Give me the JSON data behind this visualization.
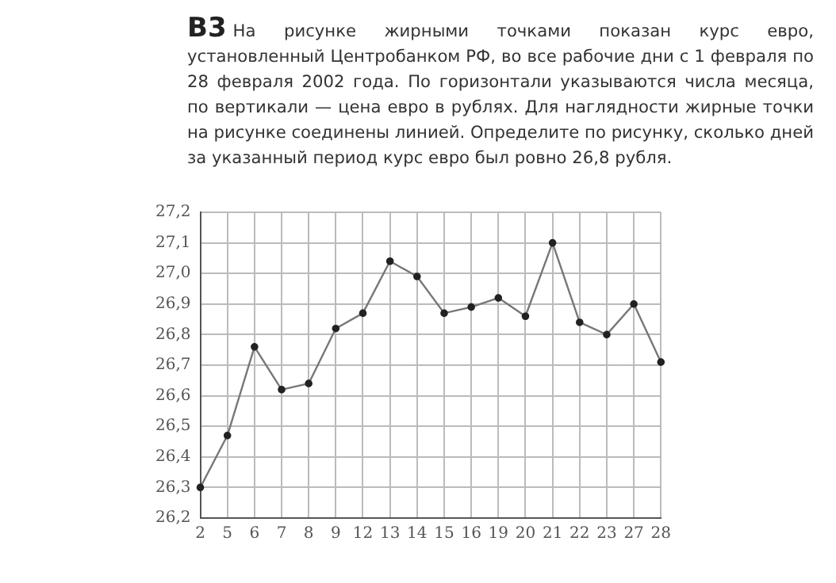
{
  "chart_data": {
    "type": "line",
    "title": "В3",
    "subtitle": "На рисунке жирными точками показан курс евро, установленный Центробанком РФ, во все рабочие дни с 1 февраля по 28 февраля 2002 года. По горизонтали указываются числа месяца, по вертикали — цена евро в рублях. Для наглядности жирные точки на рисунке соединены линией. Определите по рисунку, сколько дней за указанный период курс евро был ровно 26,8 рубля.",
    "categories": [
      "2",
      "5",
      "6",
      "7",
      "8",
      "9",
      "12",
      "13",
      "14",
      "15",
      "16",
      "19",
      "20",
      "21",
      "22",
      "23",
      "27",
      "28"
    ],
    "series": [
      {
        "color": "#777777",
        "values": [
          26.3,
          26.47,
          26.76,
          26.62,
          26.64,
          26.82,
          26.87,
          27.04,
          26.99,
          26.87,
          26.89,
          26.92,
          26.86,
          27.1,
          26.84,
          26.8,
          26.9,
          26.71
        ]
      }
    ],
    "ylim": [
      26.2,
      27.2
    ],
    "yticks": [
      {
        "value": 26.2,
        "label": "26,2"
      },
      {
        "value": 26.3,
        "label": "26,3"
      },
      {
        "value": 26.4,
        "label": "26,4"
      },
      {
        "value": 26.5,
        "label": "26,5"
      },
      {
        "value": 26.6,
        "label": "26,6"
      },
      {
        "value": 26.7,
        "label": "26,7"
      },
      {
        "value": 26.8,
        "label": "26,8"
      },
      {
        "value": 26.9,
        "label": "26,9"
      },
      {
        "value": 27.0,
        "label": "27,0"
      },
      {
        "value": 27.1,
        "label": "27,1"
      },
      {
        "value": 27.2,
        "label": "27,2"
      }
    ],
    "grid": true,
    "legend": false,
    "marker": "circle",
    "line_style": "solid"
  }
}
